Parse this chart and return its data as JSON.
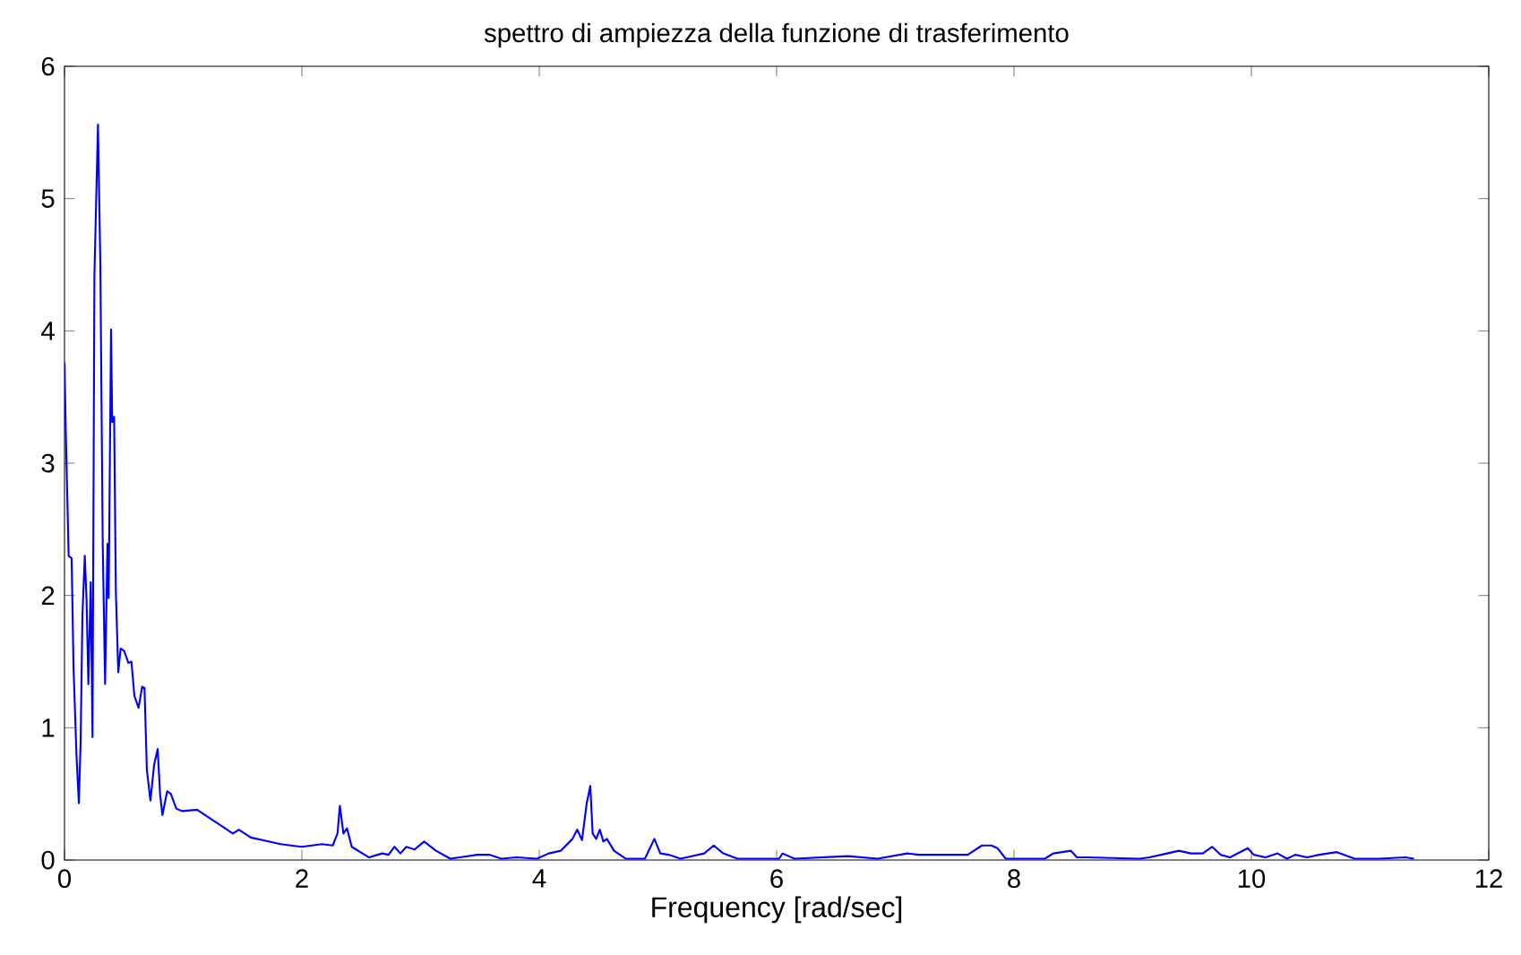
{
  "chart_data": {
    "type": "line",
    "title": "spettro di ampiezza della funzione di trasferimento",
    "xlabel": "Frequency [rad/sec]",
    "xlim": [
      0,
      12
    ],
    "ylim": [
      0,
      6
    ],
    "xticks": [
      0,
      2,
      4,
      6,
      8,
      10,
      12
    ],
    "yticks": [
      0,
      1,
      2,
      3,
      4,
      5,
      6
    ],
    "line_style": "solid",
    "series": [
      {
        "color": "#0000ff",
        "x": [
          0,
          0.01,
          0.035,
          0.06,
          0.076,
          0.101,
          0.121,
          0.136,
          0.151,
          0.171,
          0.186,
          0.201,
          0.221,
          0.236,
          0.252,
          0.282,
          0.302,
          0.322,
          0.342,
          0.362,
          0.372,
          0.392,
          0.402,
          0.418,
          0.433,
          0.453,
          0.473,
          0.503,
          0.538,
          0.564,
          0.589,
          0.624,
          0.654,
          0.674,
          0.694,
          0.724,
          0.755,
          0.785,
          0.805,
          0.825,
          0.865,
          0.896,
          0.941,
          0.991,
          1.117,
          1.268,
          1.419,
          1.469,
          1.57,
          1.72,
          1.82,
          1.998,
          2.17,
          2.26,
          2.3,
          2.32,
          2.35,
          2.38,
          2.42,
          2.566,
          2.677,
          2.73,
          2.78,
          2.83,
          2.88,
          2.95,
          3.03,
          3.13,
          3.25,
          3.48,
          3.58,
          3.68,
          3.81,
          3.98,
          4.08,
          4.18,
          4.28,
          4.32,
          4.36,
          4.4,
          4.43,
          4.45,
          4.48,
          4.51,
          4.54,
          4.57,
          4.63,
          4.73,
          4.89,
          4.97,
          5.02,
          5.09,
          5.19,
          5.39,
          5.47,
          5.55,
          5.67,
          6.02,
          6.05,
          6.15,
          6.6,
          6.85,
          7.1,
          7.2,
          7.4,
          7.61,
          7.73,
          7.81,
          7.86,
          7.93,
          8.26,
          8.33,
          8.48,
          8.53,
          8.61,
          9.06,
          9.14,
          9.24,
          9.39,
          9.49,
          9.59,
          9.67,
          9.74,
          9.82,
          9.97,
          10.02,
          10.12,
          10.22,
          10.3,
          10.37,
          10.47,
          10.57,
          10.72,
          10.87,
          11.07,
          11.3,
          11.37
        ],
        "values": [
          3.76,
          3.27,
          2.3,
          2.28,
          1.46,
          0.79,
          0.43,
          0.9,
          1.85,
          2.3,
          1.96,
          1.33,
          2.1,
          0.93,
          4.42,
          5.56,
          4.5,
          2.39,
          1.33,
          2.39,
          1.98,
          4.01,
          3.31,
          3.35,
          2.02,
          1.42,
          1.6,
          1.58,
          1.49,
          1.5,
          1.24,
          1.15,
          1.31,
          1.3,
          0.68,
          0.45,
          0.72,
          0.84,
          0.5,
          0.34,
          0.52,
          0.5,
          0.39,
          0.37,
          0.38,
          0.29,
          0.2,
          0.23,
          0.17,
          0.14,
          0.12,
          0.1,
          0.12,
          0.11,
          0.2,
          0.41,
          0.2,
          0.24,
          0.1,
          0.02,
          0.05,
          0.04,
          0.1,
          0.05,
          0.1,
          0.08,
          0.14,
          0.07,
          0.01,
          0.04,
          0.04,
          0.01,
          0.02,
          0.01,
          0.05,
          0.07,
          0.16,
          0.23,
          0.15,
          0.43,
          0.56,
          0.2,
          0.16,
          0.23,
          0.14,
          0.16,
          0.07,
          0.01,
          0.01,
          0.16,
          0.05,
          0.04,
          0.01,
          0.05,
          0.11,
          0.05,
          0.01,
          0.01,
          0.05,
          0.01,
          0.03,
          0.01,
          0.05,
          0.04,
          0.04,
          0.04,
          0.11,
          0.11,
          0.09,
          0.01,
          0.01,
          0.05,
          0.07,
          0.02,
          0.02,
          0.01,
          0.02,
          0.04,
          0.07,
          0.05,
          0.05,
          0.1,
          0.04,
          0.02,
          0.09,
          0.04,
          0.02,
          0.05,
          0.01,
          0.04,
          0.02,
          0.04,
          0.06,
          0.01,
          0.01,
          0.02,
          0.01
        ]
      }
    ]
  }
}
